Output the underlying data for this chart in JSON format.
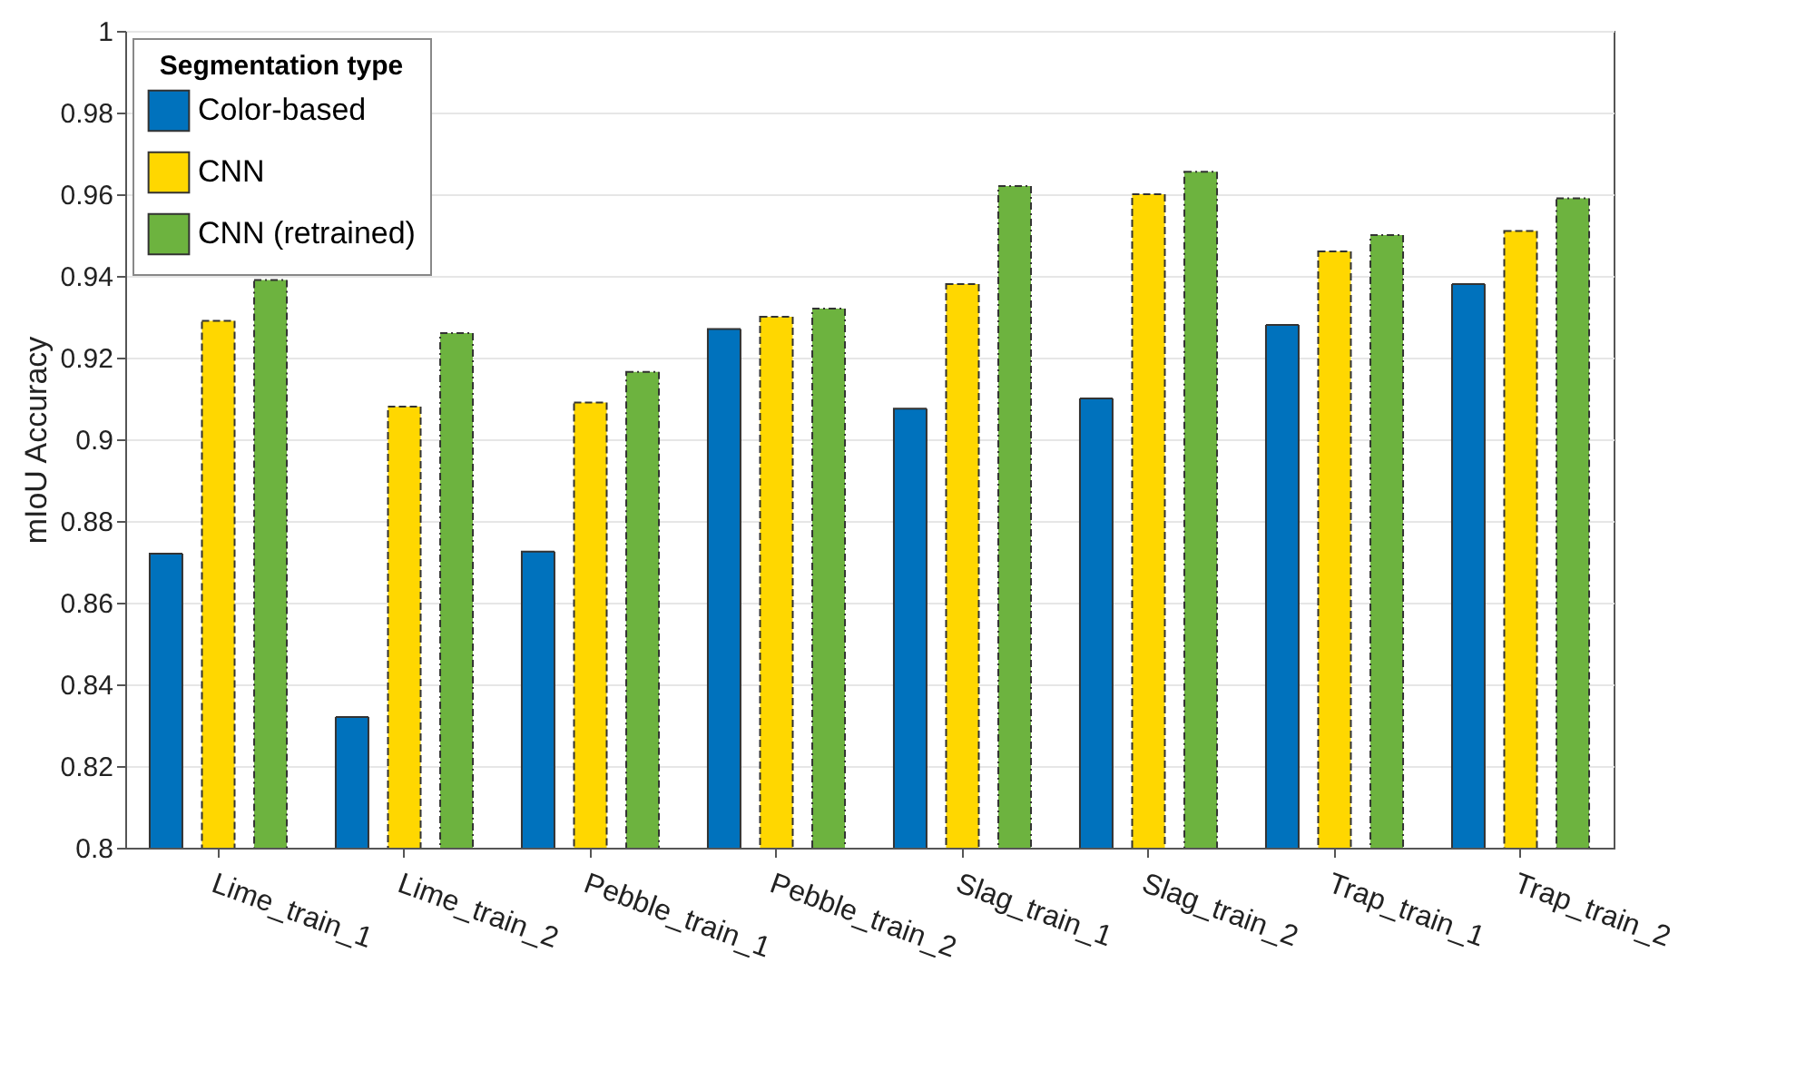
{
  "chart_data": {
    "type": "bar",
    "ylabel": "mIoU Accuracy",
    "legend_title": "Segmentation type",
    "legend": "top left",
    "grid": "y",
    "categories": [
      "Lime_train_1",
      "Lime_train_2",
      "Pebble_train_1",
      "Pebble_train_2",
      "Slag_train_1",
      "Slag_train_2",
      "Trap_train_1",
      "Trap_train_2"
    ],
    "series": [
      {
        "name": "Color-based",
        "color": "#0072bd",
        "values": [
          0.872,
          0.832,
          0.8725,
          0.927,
          0.9075,
          0.91,
          0.928,
          0.938
        ]
      },
      {
        "name": "CNN",
        "color": "#ffd700",
        "values": [
          0.929,
          0.908,
          0.909,
          0.93,
          0.938,
          0.96,
          0.946,
          0.951
        ]
      },
      {
        "name": "CNN (retrained)",
        "color": "#6db33f",
        "values": [
          0.939,
          0.926,
          0.9165,
          0.932,
          0.962,
          0.9655,
          0.95,
          0.959
        ]
      }
    ],
    "ylim": [
      0.8,
      1
    ],
    "yticks": [
      0.8,
      0.82,
      0.84,
      0.86,
      0.88,
      0.9,
      0.92,
      0.94,
      0.96,
      0.98,
      1
    ]
  }
}
